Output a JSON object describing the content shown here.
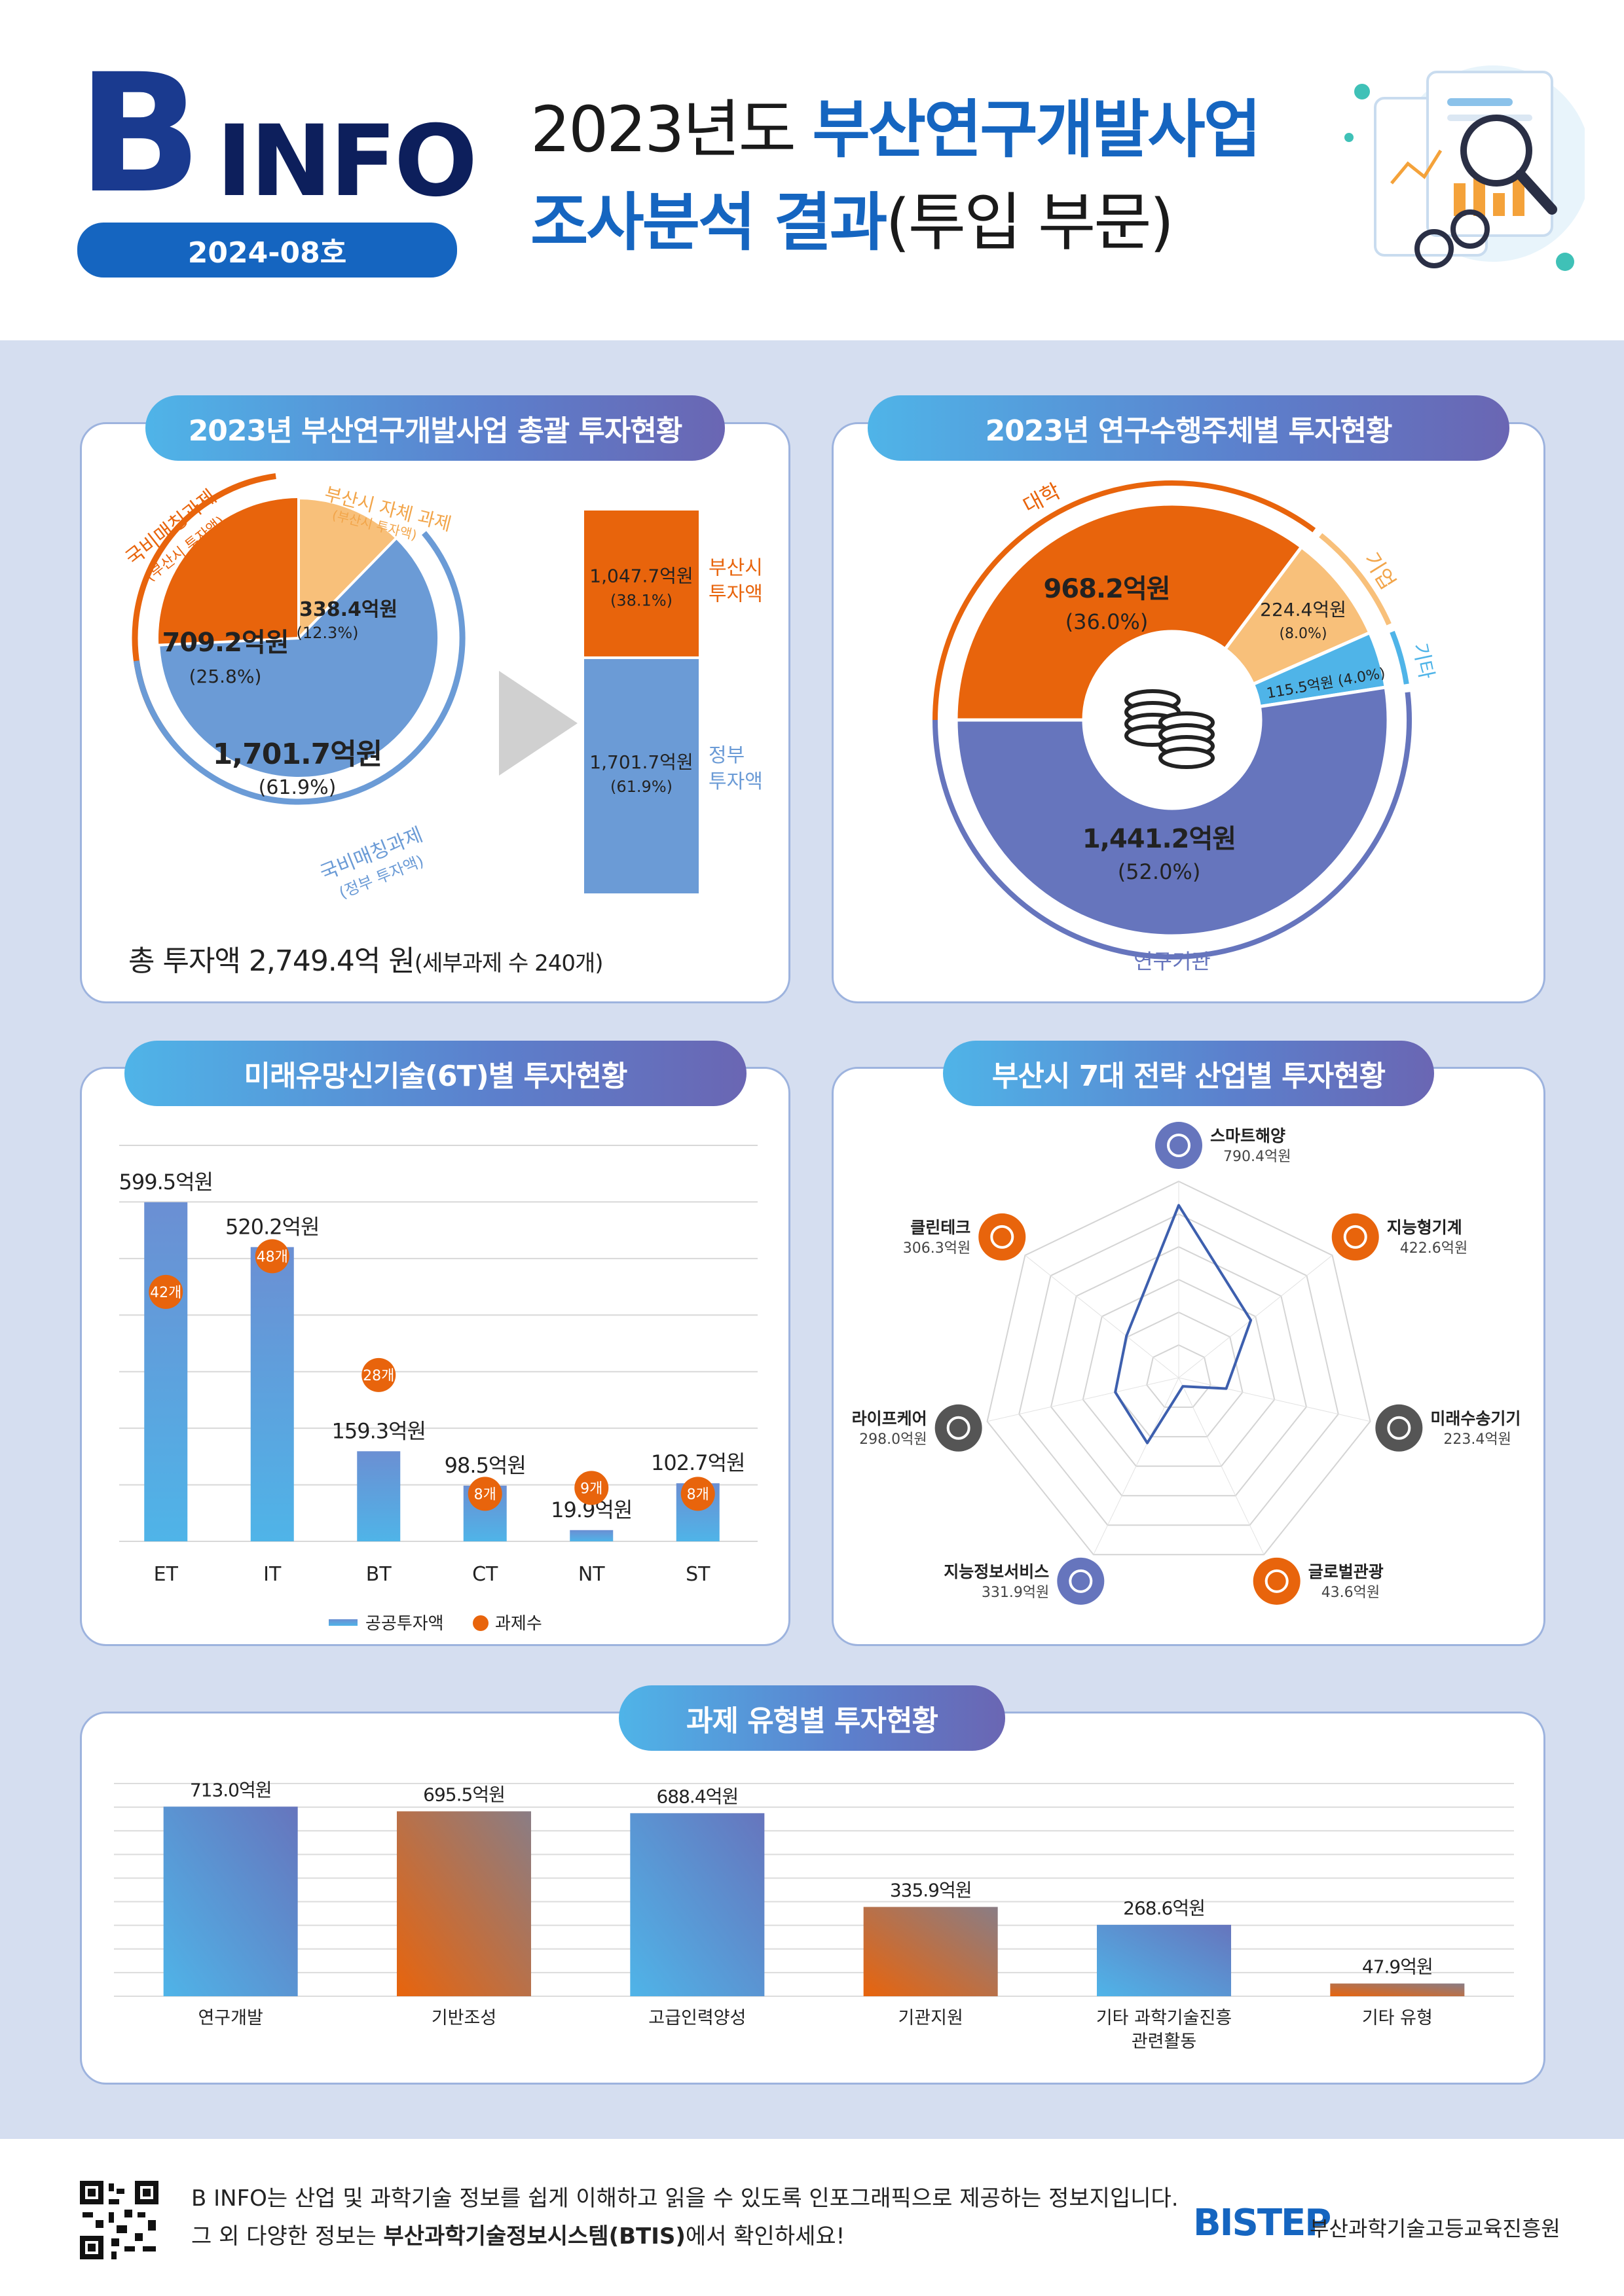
{
  "header": {
    "logo_b": "B",
    "logo_text": "INFO",
    "issue": "2024-08호",
    "title_line1_prefix": "2023년도 ",
    "title_line1_bold": "부산연구개발사업",
    "title_line2_bold": "조사분석 결과",
    "title_line2_suffix": "(투입 부문)"
  },
  "colors": {
    "orange": "#e8640c",
    "light_orange": "#f8c07a",
    "blue": "#6b9bd6",
    "navy": "#6675bd",
    "sky": "#4fb4e8",
    "dark_blue": "#1565c0"
  },
  "panel1": {
    "title": "2023년 부산연구개발사업 총괄 투자현황",
    "total_text": "총 투자액 2,749.4억 원",
    "total_sub": "(세부과제 수 240개)",
    "arc_labels": {
      "national_match_city": "국비매칭과제",
      "national_match_city_sub": "(부산시 투자액)",
      "city_own": "부산시 자체 과제",
      "city_own_sub": "(부산시 투자액)",
      "national_match_gov": "국비매칭과제",
      "national_match_gov_sub": "(정부 투자액)"
    },
    "bar_labels": {
      "top_value": "1,047.7억원",
      "top_pct": "(38.1%)",
      "top_name1": "부산시",
      "top_name2": "투자액",
      "bottom_value": "1,701.7억원",
      "bottom_pct": "(61.9%)",
      "bottom_name1": "정부",
      "bottom_name2": "투자액"
    }
  },
  "panel2": {
    "title": "2023년 연구수행주체별 투자현황",
    "arc_labels": {
      "university": "대학",
      "company": "기업",
      "other": "기타",
      "institute": "연구기관"
    }
  },
  "panel3": {
    "title": "미래유망신기술(6T)별 투자현황",
    "legend_bar": "공공투자액",
    "legend_dot": "과제수"
  },
  "panel4": {
    "title": "부산시 7대 전략 산업별 투자현황",
    "unit": "억원"
  },
  "panel5": {
    "title": "과제 유형별 투자현황"
  },
  "footer": {
    "line1_pre": "B INFO는 산업 및 과학기술 정보를 쉽게 이해하고 읽을 수 있도록 인포그래픽으로 제공하는 정보지입니다.",
    "line2_pre": "그 외 다양한 정보는 ",
    "line2_bold": "부산과학기술정보시스템(BTIS)",
    "line2_post": "에서 확인하세요!",
    "org_logo": "BISTEP",
    "org_name": "부산과학기술고등교육진흥원"
  },
  "chart_data": [
    {
      "type": "pie",
      "title": "2023년 부산연구개발사업 총괄 투자현황",
      "slices": [
        {
          "label": "국비매칭과제(부산시 투자액)",
          "value": 709.2,
          "value_label": "709.2억원",
          "pct_label": "(25.8%)",
          "color": "#e8640c"
        },
        {
          "label": "부산시 자체 과제(부산시 투자액)",
          "value": 338.4,
          "value_label": "338.4억원",
          "pct_label": "(12.3%)",
          "color": "#f8c07a"
        },
        {
          "label": "국비매칭과제(정부 투자액)",
          "value": 1701.7,
          "value_label": "1,701.7억원",
          "pct_label": "(61.9%)",
          "color": "#6b9bd6"
        }
      ],
      "stack": [
        {
          "label": "부산시 투자액",
          "value": 1047.7,
          "pct": 38.1
        },
        {
          "label": "정부 투자액",
          "value": 1701.7,
          "pct": 61.9
        }
      ]
    },
    {
      "type": "pie",
      "title": "2023년 연구수행주체별 투자현황",
      "slices": [
        {
          "label": "대학",
          "value": 968.2,
          "value_label": "968.2억원",
          "pct_label": "(36.0%)",
          "color": "#e8640c"
        },
        {
          "label": "기업",
          "value": 224.4,
          "value_label": "224.4억원",
          "pct_label": "(8.0%)",
          "color": "#f8c07a"
        },
        {
          "label": "기타",
          "value": 115.5,
          "value_label": "115.5억원 (4.0%)",
          "pct_label": "",
          "color": "#4fb4e8"
        },
        {
          "label": "연구기관",
          "value": 1441.2,
          "value_label": "1,441.2억원",
          "pct_label": "(52.0%)",
          "color": "#6675bd"
        }
      ]
    },
    {
      "type": "bar",
      "title": "미래유망신기술(6T)별 투자현황",
      "categories": [
        "ET",
        "IT",
        "BT",
        "CT",
        "NT",
        "ST"
      ],
      "values": [
        599.5,
        520.2,
        159.3,
        98.5,
        19.9,
        102.7
      ],
      "value_labels": [
        "599.5억원",
        "520.2억원",
        "159.3억원",
        "98.5억원",
        "19.9억원",
        "102.7억원"
      ],
      "counts": [
        42,
        48,
        28,
        8,
        9,
        8
      ],
      "count_labels": [
        "42개",
        "48개",
        "28개",
        "8개",
        "9개",
        "8개"
      ],
      "ylim": [
        0,
        700
      ]
    },
    {
      "type": "radar",
      "title": "부산시 7대 전략 산업별 투자현황",
      "axes": [
        {
          "label": "스마트해양",
          "value": 790.4,
          "value_label": "790.4억원"
        },
        {
          "label": "지능형기계",
          "value": 422.6,
          "value_label": "422.6억원"
        },
        {
          "label": "미래수송기기",
          "value": 223.4,
          "value_label": "223.4억원"
        },
        {
          "label": "글로벌관광",
          "value": 43.6,
          "value_label": "43.6억원"
        },
        {
          "label": "지능정보서비스",
          "value": 331.9,
          "value_label": "331.9억원"
        },
        {
          "label": "라이프케어",
          "value": 298.0,
          "value_label": "298.0억원"
        },
        {
          "label": "클린테크",
          "value": 306.3,
          "value_label": "306.3억원"
        }
      ],
      "rmax": 900
    },
    {
      "type": "bar",
      "title": "과제 유형별 투자현황",
      "categories": [
        "연구개발",
        "기반조성",
        "고급인력양성",
        "기관지원",
        "기타 과학기술진흥 관련활동",
        "기타 유형"
      ],
      "category_lines": [
        [
          "연구개발"
        ],
        [
          "기반조성"
        ],
        [
          "고급인력양성"
        ],
        [
          "기관지원"
        ],
        [
          "기타 과학기술진흥",
          "관련활동"
        ],
        [
          "기타 유형"
        ]
      ],
      "values": [
        713.0,
        695.5,
        688.4,
        335.9,
        268.6,
        47.9
      ],
      "value_labels": [
        "713.0억원",
        "695.5억원",
        "688.4억원",
        "335.9억원",
        "268.6억원",
        "47.9억원"
      ],
      "ylim": [
        0,
        800
      ]
    }
  ]
}
